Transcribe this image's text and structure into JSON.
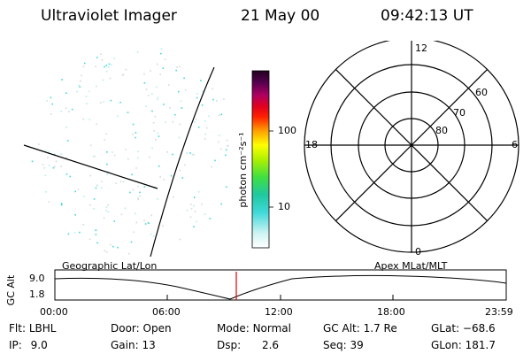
{
  "header": {
    "title": "Ultraviolet Imager",
    "date": "21 May 00",
    "time": "09:42:13 UT"
  },
  "colorbar": {
    "label": "photon cm⁻²s⁻¹",
    "ticks": [
      "100",
      "10"
    ]
  },
  "polar": {
    "mlt_labels": {
      "top": "12",
      "left": "18",
      "right": "6",
      "bottom": "0"
    },
    "lat_labels": [
      "60",
      "70",
      "80"
    ]
  },
  "timeline": {
    "ylabel": "GC Alt",
    "y_ticks": [
      "9.0",
      "1.8"
    ],
    "left_caption": "Geographic Lat/Lon",
    "right_caption": "Apex MLat/MLT",
    "x_ticks": [
      "00:00",
      "06:00",
      "12:00",
      "18:00",
      "23:59"
    ]
  },
  "info": {
    "filter": {
      "label": "Flt:",
      "value": "LBHL"
    },
    "ip": {
      "label": "IP:",
      "value": "9.0"
    },
    "door": {
      "label": "Door:",
      "value": "Open"
    },
    "gain": {
      "label": "Gain:",
      "value": "13"
    },
    "mode": {
      "label": "Mode:",
      "value": "Normal"
    },
    "dsp": {
      "label": "Dsp:",
      "value": "2.6"
    },
    "gc_alt": {
      "label": "GC Alt:",
      "value": "1.7 Re"
    },
    "seq": {
      "label": "Seq:",
      "value": "39"
    },
    "glat": {
      "label": "GLat:",
      "value": "−68.6"
    },
    "glon": {
      "label": "GLon:",
      "value": "181.7"
    }
  },
  "colors": {
    "marker": "#e00000"
  }
}
